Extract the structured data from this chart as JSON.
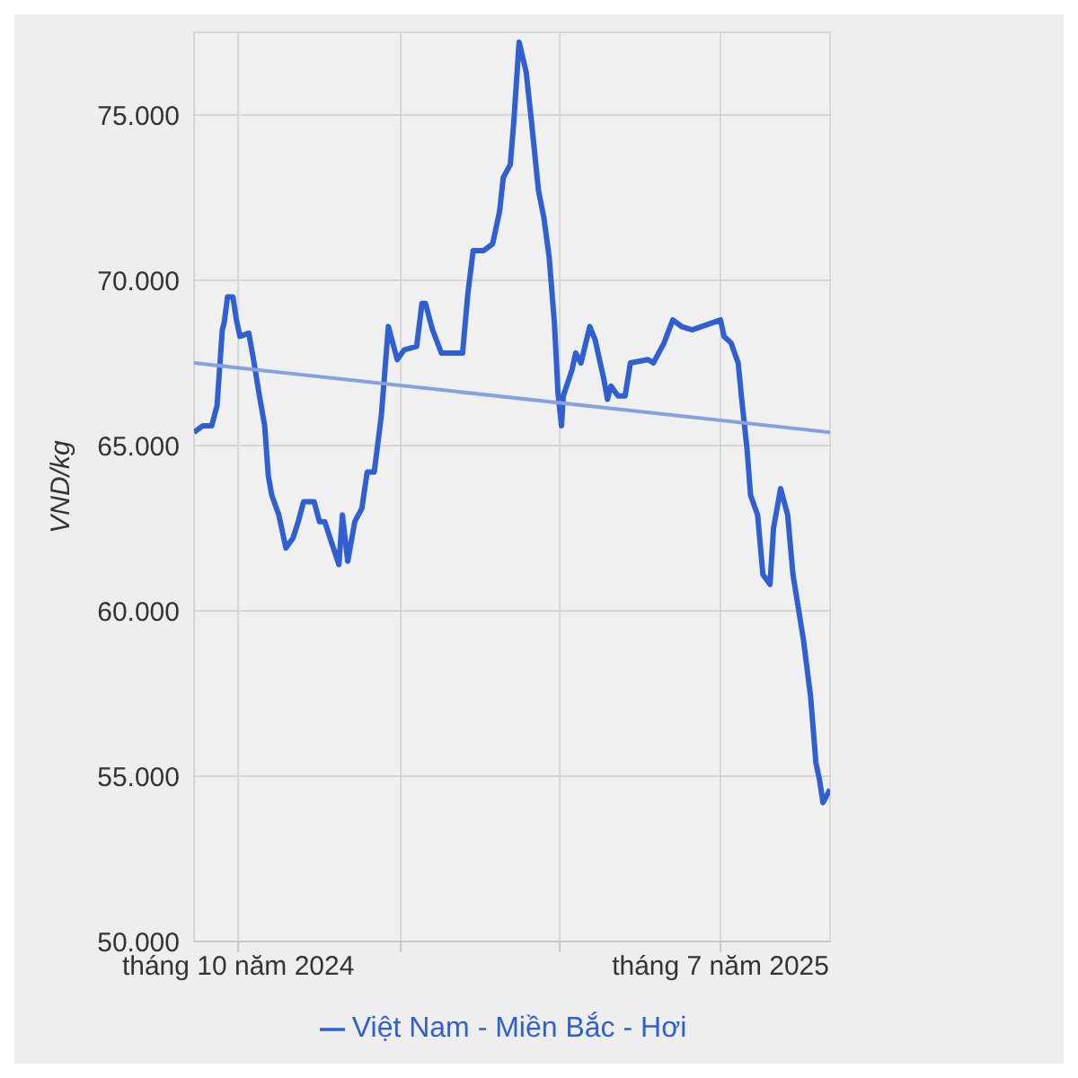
{
  "chart_data": {
    "type": "line",
    "ylabel": "VND/kg",
    "xlim": [
      "2024-09-06",
      "2025-09-01"
    ],
    "xticks": [
      {
        "value": "2024-10-01",
        "label": "tháng 10 năm 2024"
      },
      {
        "value": "2025-01-01",
        "label": null
      },
      {
        "value": "2025-04-01",
        "label": null
      },
      {
        "value": "2025-07-01",
        "label": "tháng 7 năm 2025"
      }
    ],
    "ylim": [
      50000,
      77500
    ],
    "yticks": [
      {
        "value": 50000,
        "label": "50.000"
      },
      {
        "value": 55000,
        "label": "55.000"
      },
      {
        "value": 60000,
        "label": "60.000"
      },
      {
        "value": 65000,
        "label": "65.000"
      },
      {
        "value": 70000,
        "label": "70.000"
      },
      {
        "value": 75000,
        "label": "75.000"
      }
    ],
    "grid": true,
    "legend": "bottom",
    "marker": "none",
    "line_style": "solid",
    "series": [
      {
        "name": "Việt Nam - Miền Bắc - Hơi",
        "color": "#2f5fd0",
        "x": [
          "2024-09-06",
          "2024-09-11",
          "2024-09-16",
          "2024-09-19",
          "2024-09-22",
          "2024-09-23",
          "2024-09-25",
          "2024-09-28",
          "2024-09-30",
          "2024-10-02",
          "2024-10-07",
          "2024-10-10",
          "2024-10-13",
          "2024-10-16",
          "2024-10-18",
          "2024-10-20",
          "2024-10-24",
          "2024-10-28",
          "2024-11-01",
          "2024-11-04",
          "2024-11-07",
          "2024-11-13",
          "2024-11-16",
          "2024-11-19",
          "2024-11-22",
          "2024-11-27",
          "2024-11-29",
          "2024-12-02",
          "2024-12-06",
          "2024-12-10",
          "2024-12-13",
          "2024-12-17",
          "2024-12-21",
          "2024-12-25",
          "2024-12-30",
          "2025-01-03",
          "2025-01-10",
          "2025-01-13",
          "2025-01-15",
          "2025-01-19",
          "2025-01-24",
          "2025-02-05",
          "2025-02-08",
          "2025-02-11",
          "2025-02-17",
          "2025-02-22",
          "2025-02-26",
          "2025-02-28",
          "2025-03-04",
          "2025-03-06",
          "2025-03-09",
          "2025-03-13",
          "2025-03-16",
          "2025-03-20",
          "2025-03-23",
          "2025-03-26",
          "2025-03-29",
          "2025-03-31",
          "2025-04-02",
          "2025-04-03",
          "2025-04-08",
          "2025-04-10",
          "2025-04-13",
          "2025-04-18",
          "2025-04-21",
          "2025-04-26",
          "2025-04-28",
          "2025-04-30",
          "2025-05-04",
          "2025-05-08",
          "2025-05-11",
          "2025-05-21",
          "2025-05-24",
          "2025-05-30",
          "2025-06-04",
          "2025-06-09",
          "2025-06-15",
          "2025-07-01",
          "2025-07-03",
          "2025-07-07",
          "2025-07-11",
          "2025-07-13",
          "2025-07-16",
          "2025-07-18",
          "2025-07-22",
          "2025-07-25",
          "2025-07-29",
          "2025-07-31",
          "2025-08-04",
          "2025-08-08",
          "2025-08-11",
          "2025-08-17",
          "2025-08-21",
          "2025-08-24",
          "2025-08-26",
          "2025-08-28",
          "2025-09-01"
        ],
        "values": [
          65400,
          65600,
          65600,
          66200,
          68500,
          68700,
          69500,
          69500,
          68800,
          68300,
          68400,
          67500,
          66500,
          65600,
          64100,
          63500,
          62900,
          61900,
          62200,
          62700,
          63300,
          63300,
          62700,
          62700,
          62200,
          61400,
          62900,
          61500,
          62700,
          63100,
          64200,
          64200,
          65900,
          68600,
          67600,
          67900,
          68000,
          69300,
          69300,
          68500,
          67800,
          67800,
          69600,
          70900,
          70900,
          71100,
          72100,
          73100,
          73500,
          74800,
          77200,
          76300,
          74800,
          72700,
          71900,
          70700,
          68700,
          66600,
          65600,
          66500,
          67300,
          67800,
          67500,
          68600,
          68200,
          67000,
          66400,
          66800,
          66500,
          66500,
          67500,
          67600,
          67500,
          68100,
          68800,
          68600,
          68500,
          68800,
          68300,
          68100,
          67500,
          66400,
          64900,
          63500,
          62900,
          61100,
          60800,
          62500,
          63700,
          62900,
          61100,
          59100,
          57400,
          55400,
          54900,
          54200,
          54600
        ]
      },
      {
        "type": "line",
        "color": "#86a2dc",
        "x": [
          "2024-09-06",
          "2025-09-01"
        ],
        "values": [
          67500,
          65400
        ]
      }
    ]
  }
}
